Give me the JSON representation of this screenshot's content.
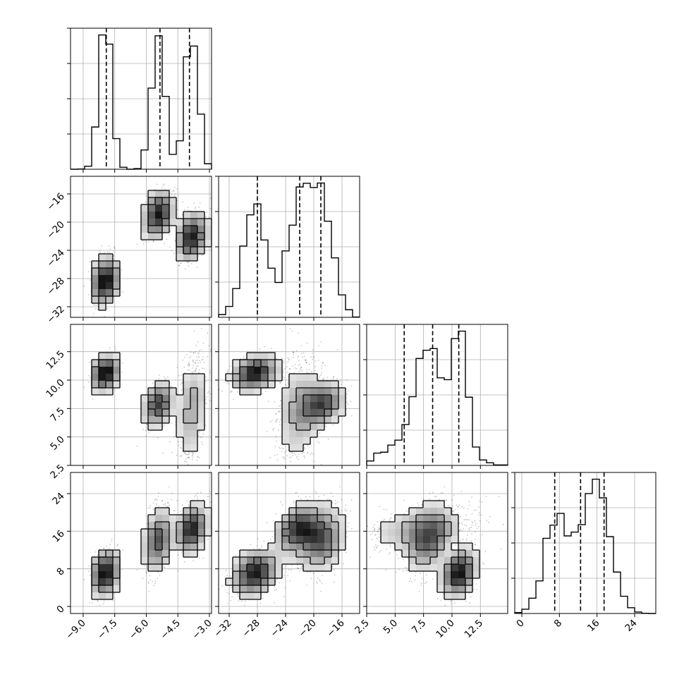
{
  "chart_data": {
    "type": "corner",
    "grid": true,
    "parameters": [
      {
        "range": [
          -9.6,
          -2.9
        ],
        "ticks": [
          -9.0,
          -7.5,
          -6.0,
          -4.5,
          -3.0
        ],
        "tick_labels": [
          "−9.0",
          "−7.5",
          "−6.0",
          "−4.5",
          "−3.0"
        ],
        "quantiles": [
          -7.9,
          -5.35,
          -3.95
        ],
        "modes": [
          {
            "mean": -7.95,
            "sd": 0.28,
            "weight": 0.33
          },
          {
            "mean": -5.45,
            "sd": 0.3,
            "weight": 0.33
          },
          {
            "mean": -3.85,
            "sd": 0.3,
            "weight": 0.34
          }
        ]
      },
      {
        "range": [
          -33.5,
          -13.5
        ],
        "ticks": [
          -32,
          -28,
          -24,
          -20,
          -16
        ],
        "tick_labels": [
          "−32",
          "−28",
          "−24",
          "−20",
          "−16"
        ],
        "quantiles": [
          -28.0,
          -22.0,
          -19.0
        ],
        "modes": [
          {
            "mean": -28.3,
            "sd": 1.6,
            "weight": 0.33
          },
          {
            "mean": -19.0,
            "sd": 1.6,
            "weight": 0.33
          },
          {
            "mean": -22.0,
            "sd": 1.7,
            "weight": 0.34
          }
        ]
      },
      {
        "range": [
          2.5,
          14.9
        ],
        "ticks": [
          2.5,
          5.0,
          7.5,
          10.0,
          12.5
        ],
        "tick_labels": [
          "2.5",
          "5.0",
          "7.5",
          "10.0",
          "12.5"
        ],
        "quantiles": [
          5.8,
          8.3,
          10.6
        ],
        "modes": [
          {
            "mean": 10.6,
            "sd": 0.7,
            "weight": 0.33
          },
          {
            "mean": 7.8,
            "sd": 0.9,
            "weight": 0.33
          },
          {
            "mean": 7.5,
            "sd": 2.4,
            "weight": 0.34
          }
        ]
      },
      {
        "range": [
          -1.5,
          28.5
        ],
        "ticks": [
          0,
          8,
          16,
          24
        ],
        "tick_labels": [
          "0",
          "8",
          "16",
          "24"
        ],
        "quantiles": [
          7.0,
          12.5,
          17.5
        ],
        "modes": [
          {
            "mean": 7.0,
            "sd": 2.5,
            "weight": 0.33
          },
          {
            "mean": 14.0,
            "sd": 3.5,
            "weight": 0.33
          },
          {
            "mean": 16.5,
            "sd": 2.5,
            "weight": 0.34
          }
        ]
      }
    ]
  }
}
